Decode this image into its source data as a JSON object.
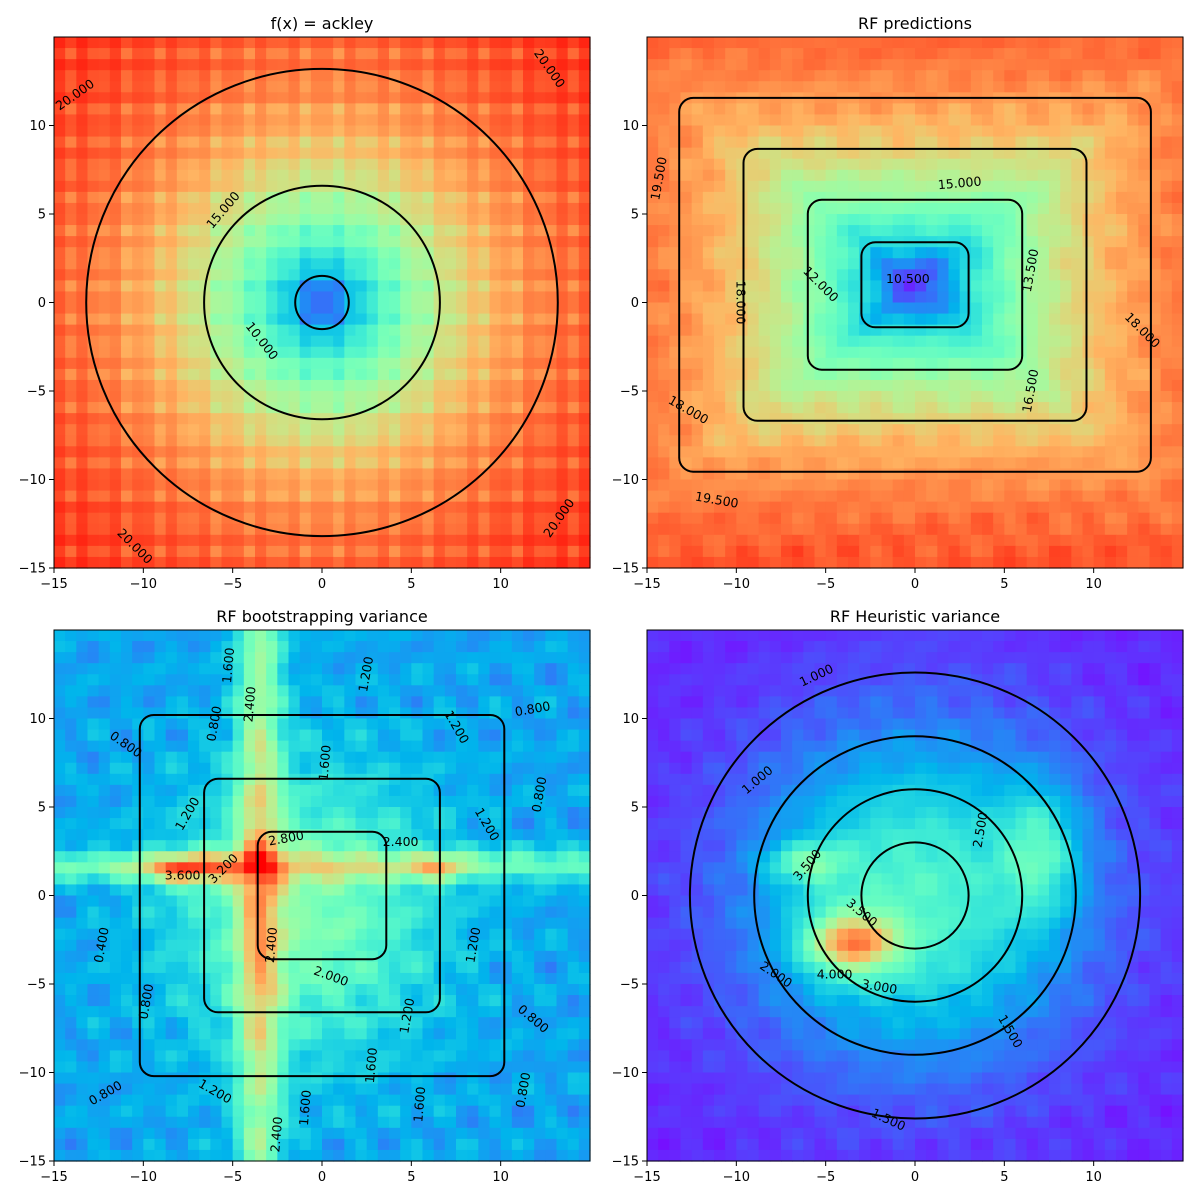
{
  "chart_data": [
    {
      "type": "heatmap",
      "subtype": "filled-contour with contour lines",
      "title": "f(x) = ackley",
      "colormap": "rainbow",
      "xlim": [
        -15,
        15
      ],
      "ylim": [
        -15,
        15
      ],
      "xticks": [
        "−15",
        "−10",
        "−5",
        "0",
        "5",
        "10"
      ],
      "xtick_values": [
        -15,
        -10,
        -5,
        0,
        5,
        10
      ],
      "yticks": [
        "−15",
        "−10",
        "−5",
        "0",
        "5",
        "10"
      ],
      "ytick_values": [
        -15,
        -10,
        -5,
        0,
        5,
        10
      ],
      "value_range": [
        0,
        22
      ],
      "contour_levels": [
        10,
        15,
        20
      ],
      "contour_labels": [
        {
          "text": "10.000",
          "x": -3.4,
          "y": -2.2,
          "angle": 52
        },
        {
          "text": "15.000",
          "x": -5.5,
          "y": 5.2,
          "angle": -50
        },
        {
          "text": "20.000",
          "x": -13.8,
          "y": 11.7,
          "angle": -35
        },
        {
          "text": "20.000",
          "x": 12.7,
          "y": 13.2,
          "angle": 55
        },
        {
          "text": "20.000",
          "x": -10.5,
          "y": -13.8,
          "angle": 45
        },
        {
          "text": "20.000",
          "x": 13.3,
          "y": -12.2,
          "angle": -55
        }
      ]
    },
    {
      "type": "heatmap",
      "subtype": "filled-contour with contour lines",
      "title": "RF predictions",
      "colormap": "rainbow",
      "xlim": [
        -15,
        15
      ],
      "ylim": [
        -15,
        15
      ],
      "xticks": [
        "−15",
        "−10",
        "−5",
        "0",
        "5",
        "10"
      ],
      "xtick_values": [
        -15,
        -10,
        -5,
        0,
        5,
        10
      ],
      "yticks": [
        "−15",
        "−10",
        "−5",
        "0",
        "5",
        "10"
      ],
      "ytick_values": [
        -15,
        -10,
        -5,
        0,
        5,
        10
      ],
      "value_range": [
        9.5,
        21
      ],
      "contour_levels": [
        10.5,
        12,
        13.5,
        15,
        16.5,
        18,
        19.5
      ],
      "contour_labels": [
        {
          "text": "10.500",
          "x": -0.4,
          "y": 1.3,
          "angle": 0
        },
        {
          "text": "12.000",
          "x": -5.3,
          "y": 1.0,
          "angle": 45
        },
        {
          "text": "13.500",
          "x": 6.5,
          "y": 1.8,
          "angle": -80
        },
        {
          "text": "15.000",
          "x": 2.5,
          "y": 6.7,
          "angle": -5
        },
        {
          "text": "16.500",
          "x": 6.5,
          "y": -5.0,
          "angle": -80
        },
        {
          "text": "18.000",
          "x": -9.8,
          "y": 0.0,
          "angle": 90
        },
        {
          "text": "18.000",
          "x": -12.7,
          "y": -6.1,
          "angle": 30
        },
        {
          "text": "18.000",
          "x": 12.7,
          "y": -1.6,
          "angle": 45
        },
        {
          "text": "19.500",
          "x": -14.3,
          "y": 7.0,
          "angle": -80
        },
        {
          "text": "19.500",
          "x": -11.1,
          "y": -11.2,
          "angle": 10
        }
      ]
    },
    {
      "type": "heatmap",
      "subtype": "filled-contour with contour lines",
      "title": "RF bootstrapping variance",
      "colormap": "rainbow",
      "xlim": [
        -15,
        15
      ],
      "ylim": [
        -15,
        15
      ],
      "xticks": [
        "−15",
        "−10",
        "−5",
        "0",
        "5",
        "10"
      ],
      "xtick_values": [
        -15,
        -10,
        -5,
        0,
        5,
        10
      ],
      "yticks": [
        "−15",
        "−10",
        "−5",
        "0",
        "5",
        "10"
      ],
      "ytick_values": [
        -15,
        -10,
        -5,
        0,
        5,
        10
      ],
      "value_range": [
        0,
        4
      ],
      "contour_levels": [
        0.4,
        0.8,
        1.2,
        1.6,
        2.0,
        2.4,
        2.8,
        3.2,
        3.6
      ],
      "contour_labels": [
        {
          "text": "0.400",
          "x": -12.3,
          "y": -2.8,
          "angle": -80
        },
        {
          "text": "0.800",
          "x": -11.0,
          "y": 8.5,
          "angle": 35
        },
        {
          "text": "0.800",
          "x": -6.0,
          "y": 9.7,
          "angle": -80
        },
        {
          "text": "0.800",
          "x": 11.8,
          "y": 10.5,
          "angle": -10
        },
        {
          "text": "0.800",
          "x": 12.2,
          "y": 5.7,
          "angle": -80
        },
        {
          "text": "0.800",
          "x": -9.8,
          "y": -6.0,
          "angle": -80
        },
        {
          "text": "0.800",
          "x": 11.8,
          "y": -7.0,
          "angle": 40
        },
        {
          "text": "0.800",
          "x": -12.1,
          "y": -11.2,
          "angle": -30
        },
        {
          "text": "0.800",
          "x": 11.3,
          "y": -11.0,
          "angle": -80
        },
        {
          "text": "1.200",
          "x": 2.5,
          "y": 12.5,
          "angle": -80
        },
        {
          "text": "1.200",
          "x": 7.5,
          "y": 9.5,
          "angle": 60
        },
        {
          "text": "1.200",
          "x": 9.2,
          "y": 4.0,
          "angle": 60
        },
        {
          "text": "1.200",
          "x": -7.5,
          "y": 4.6,
          "angle": -60
        },
        {
          "text": "1.200",
          "x": 8.5,
          "y": -2.8,
          "angle": -80
        },
        {
          "text": "1.200",
          "x": 4.8,
          "y": -6.8,
          "angle": -80
        },
        {
          "text": "1.200",
          "x": -6.0,
          "y": -11.1,
          "angle": 30
        },
        {
          "text": "1.600",
          "x": -5.2,
          "y": 13.0,
          "angle": -85
        },
        {
          "text": "1.600",
          "x": 0.2,
          "y": 7.5,
          "angle": -85
        },
        {
          "text": "1.600",
          "x": 2.8,
          "y": -9.6,
          "angle": -85
        },
        {
          "text": "1.600",
          "x": 5.5,
          "y": -11.8,
          "angle": -85
        },
        {
          "text": "1.600",
          "x": -0.9,
          "y": -12.0,
          "angle": -85
        },
        {
          "text": "2.000",
          "x": 0.5,
          "y": -4.6,
          "angle": 20
        },
        {
          "text": "2.400",
          "x": -4.0,
          "y": 10.8,
          "angle": -85
        },
        {
          "text": "2.400",
          "x": 4.4,
          "y": 3.0,
          "angle": 0
        },
        {
          "text": "2.400",
          "x": -2.8,
          "y": -2.8,
          "angle": -85
        },
        {
          "text": "2.400",
          "x": -2.5,
          "y": -13.5,
          "angle": -85
        },
        {
          "text": "2.800",
          "x": -2.0,
          "y": 3.2,
          "angle": -10
        },
        {
          "text": "3.200",
          "x": -5.5,
          "y": 1.5,
          "angle": -45
        },
        {
          "text": "3.600",
          "x": -7.8,
          "y": 1.1,
          "angle": 0
        }
      ]
    },
    {
      "type": "heatmap",
      "subtype": "filled-contour with contour lines",
      "title": "RF Heuristic variance",
      "colormap": "rainbow",
      "xlim": [
        -15,
        15
      ],
      "ylim": [
        -15,
        15
      ],
      "xticks": [
        "−15",
        "−10",
        "−5",
        "0",
        "5",
        "10"
      ],
      "xtick_values": [
        -15,
        -10,
        -5,
        0,
        5,
        10
      ],
      "yticks": [
        "−15",
        "−10",
        "−5",
        "0",
        "5",
        "10"
      ],
      "ytick_values": [
        -15,
        -10,
        -5,
        0,
        5,
        10
      ],
      "value_range": [
        0.5,
        4.6
      ],
      "contour_levels": [
        1.0,
        1.5,
        2.0,
        2.5,
        3.0,
        3.5,
        4.0
      ],
      "contour_labels": [
        {
          "text": "1.000",
          "x": -5.5,
          "y": 12.4,
          "angle": -25
        },
        {
          "text": "1.000",
          "x": -8.8,
          "y": 6.5,
          "angle": -40
        },
        {
          "text": "1.500",
          "x": 5.3,
          "y": -7.7,
          "angle": 60
        },
        {
          "text": "1.500",
          "x": -1.5,
          "y": -12.7,
          "angle": 25
        },
        {
          "text": "2.000",
          "x": -7.8,
          "y": -4.5,
          "angle": 35
        },
        {
          "text": "2.500",
          "x": 3.7,
          "y": 3.7,
          "angle": -80
        },
        {
          "text": "3.000",
          "x": -2.0,
          "y": -5.2,
          "angle": 10
        },
        {
          "text": "3.500",
          "x": -6.0,
          "y": 1.7,
          "angle": -50
        },
        {
          "text": "3.500",
          "x": -3.0,
          "y": -1.0,
          "angle": 40
        },
        {
          "text": "4.000",
          "x": -4.5,
          "y": -4.5,
          "angle": 0
        }
      ]
    }
  ]
}
